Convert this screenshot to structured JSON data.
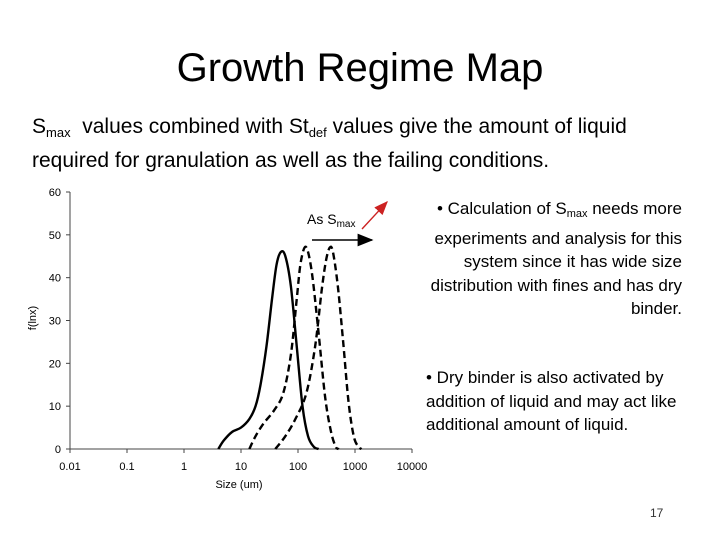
{
  "slide": {
    "title": "Growth Regime Map",
    "intro_a": "S",
    "intro_sub1": "max",
    "intro_b": "  values combined with St",
    "intro_sub2": "def",
    "intro_c": " values give the amount of liquid required for granulation as well as the failing conditions.",
    "bullet1_a": "• Calculation of S",
    "bullet1_sub": "max",
    "bullet1_b": " needs more experiments and analysis for this system since it has wide size distribution with fines and has dry binder.",
    "bullet2": "• Dry binder is also activated by addition of liquid and may act like additional amount of liquid.",
    "page_number": "17"
  },
  "chart_data": {
    "type": "line",
    "xlabel": "Size (um)",
    "ylabel": "f(lnx)",
    "xscale": "log",
    "xlim": [
      0.01,
      10000
    ],
    "ylim": [
      0,
      60
    ],
    "x_ticks": [
      "0.01",
      "0.1",
      "1",
      "10",
      "100",
      "1000",
      "10000"
    ],
    "y_ticks": [
      "0",
      "10",
      "20",
      "30",
      "40",
      "50",
      "60"
    ],
    "annotation": {
      "text_a": "As S",
      "text_sub": "max"
    },
    "series": [
      {
        "style": "solid",
        "color": "#000000",
        "points": [
          [
            4,
            0
          ],
          [
            5,
            2
          ],
          [
            7,
            4
          ],
          [
            10,
            5
          ],
          [
            14,
            7
          ],
          [
            18,
            10
          ],
          [
            22,
            15
          ],
          [
            28,
            24
          ],
          [
            35,
            35
          ],
          [
            42,
            43
          ],
          [
            50,
            46
          ],
          [
            60,
            45
          ],
          [
            75,
            38
          ],
          [
            95,
            24
          ],
          [
            120,
            10
          ],
          [
            150,
            3
          ],
          [
            190,
            0.5
          ],
          [
            230,
            0
          ]
        ]
      },
      {
        "style": "dashed",
        "color": "#000000",
        "points": [
          [
            14,
            0
          ],
          [
            18,
            3
          ],
          [
            25,
            6
          ],
          [
            38,
            9
          ],
          [
            55,
            13
          ],
          [
            75,
            22
          ],
          [
            95,
            35
          ],
          [
            110,
            43
          ],
          [
            130,
            47
          ],
          [
            150,
            46
          ],
          [
            180,
            40
          ],
          [
            230,
            27
          ],
          [
            300,
            12
          ],
          [
            380,
            4
          ],
          [
            460,
            0.5
          ],
          [
            520,
            0
          ]
        ]
      },
      {
        "style": "dashed",
        "color": "#000000",
        "points": [
          [
            40,
            0
          ],
          [
            60,
            3
          ],
          [
            90,
            7
          ],
          [
            140,
            13
          ],
          [
            200,
            24
          ],
          [
            260,
            37
          ],
          [
            310,
            44
          ],
          [
            360,
            47
          ],
          [
            410,
            46
          ],
          [
            500,
            38
          ],
          [
            620,
            25
          ],
          [
            770,
            11
          ],
          [
            950,
            3
          ],
          [
            1150,
            0.5
          ],
          [
            1300,
            0
          ]
        ]
      }
    ],
    "arrow_colors": {
      "pointer": "#cc2222",
      "axis_arrow": "#000000"
    }
  }
}
